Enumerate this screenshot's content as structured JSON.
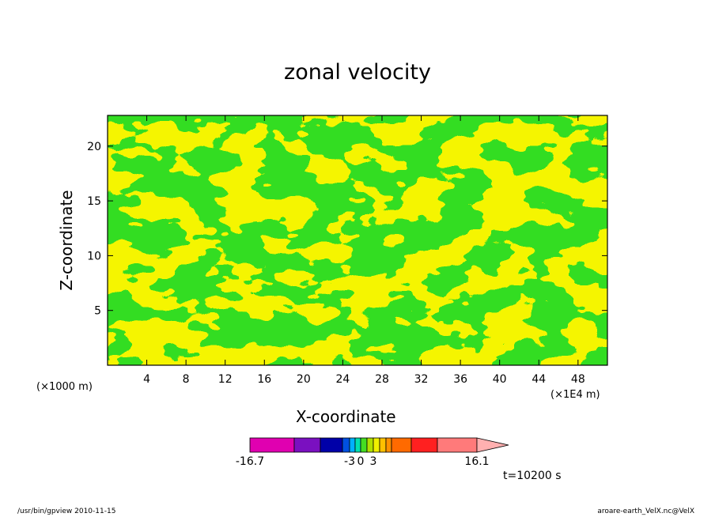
{
  "chart_data": {
    "type": "heatmap",
    "title": "zonal velocity",
    "xlabel": "X-coordinate",
    "ylabel": "Z-coordinate",
    "x_unit": "(×1E4 m)",
    "y_unit": "(×1000 m)",
    "x_ticks": [
      4,
      8,
      12,
      16,
      20,
      24,
      28,
      32,
      36,
      40,
      44,
      48
    ],
    "y_ticks": [
      5,
      10,
      15,
      20
    ],
    "xlim": [
      0,
      51
    ],
    "ylim": [
      0,
      22.8
    ],
    "colorbar": {
      "ticks": [
        "-16.7",
        "-3",
        "0",
        "3",
        "16.1"
      ],
      "min": -16.7,
      "max": 16.1,
      "colors": [
        "#e000b0",
        "#7a10c0",
        "#0000a8",
        "#0050e0",
        "#00b0ff",
        "#00e0b0",
        "#44dd22",
        "#b0e000",
        "#f0f000",
        "#ffc000",
        "#ff9000",
        "#ff6a00",
        "#ff2020",
        "#ff7a7a",
        "#ffb0b0"
      ],
      "dominant_colors": {
        "negative_small": "#33dd22",
        "positive_small": "#f5f500"
      }
    },
    "annotation": "t=10200 s"
  },
  "footer": {
    "left": "/usr/bin/gpview   2010-11-15",
    "right": "aroare-earth_VelX.nc@VelX"
  }
}
